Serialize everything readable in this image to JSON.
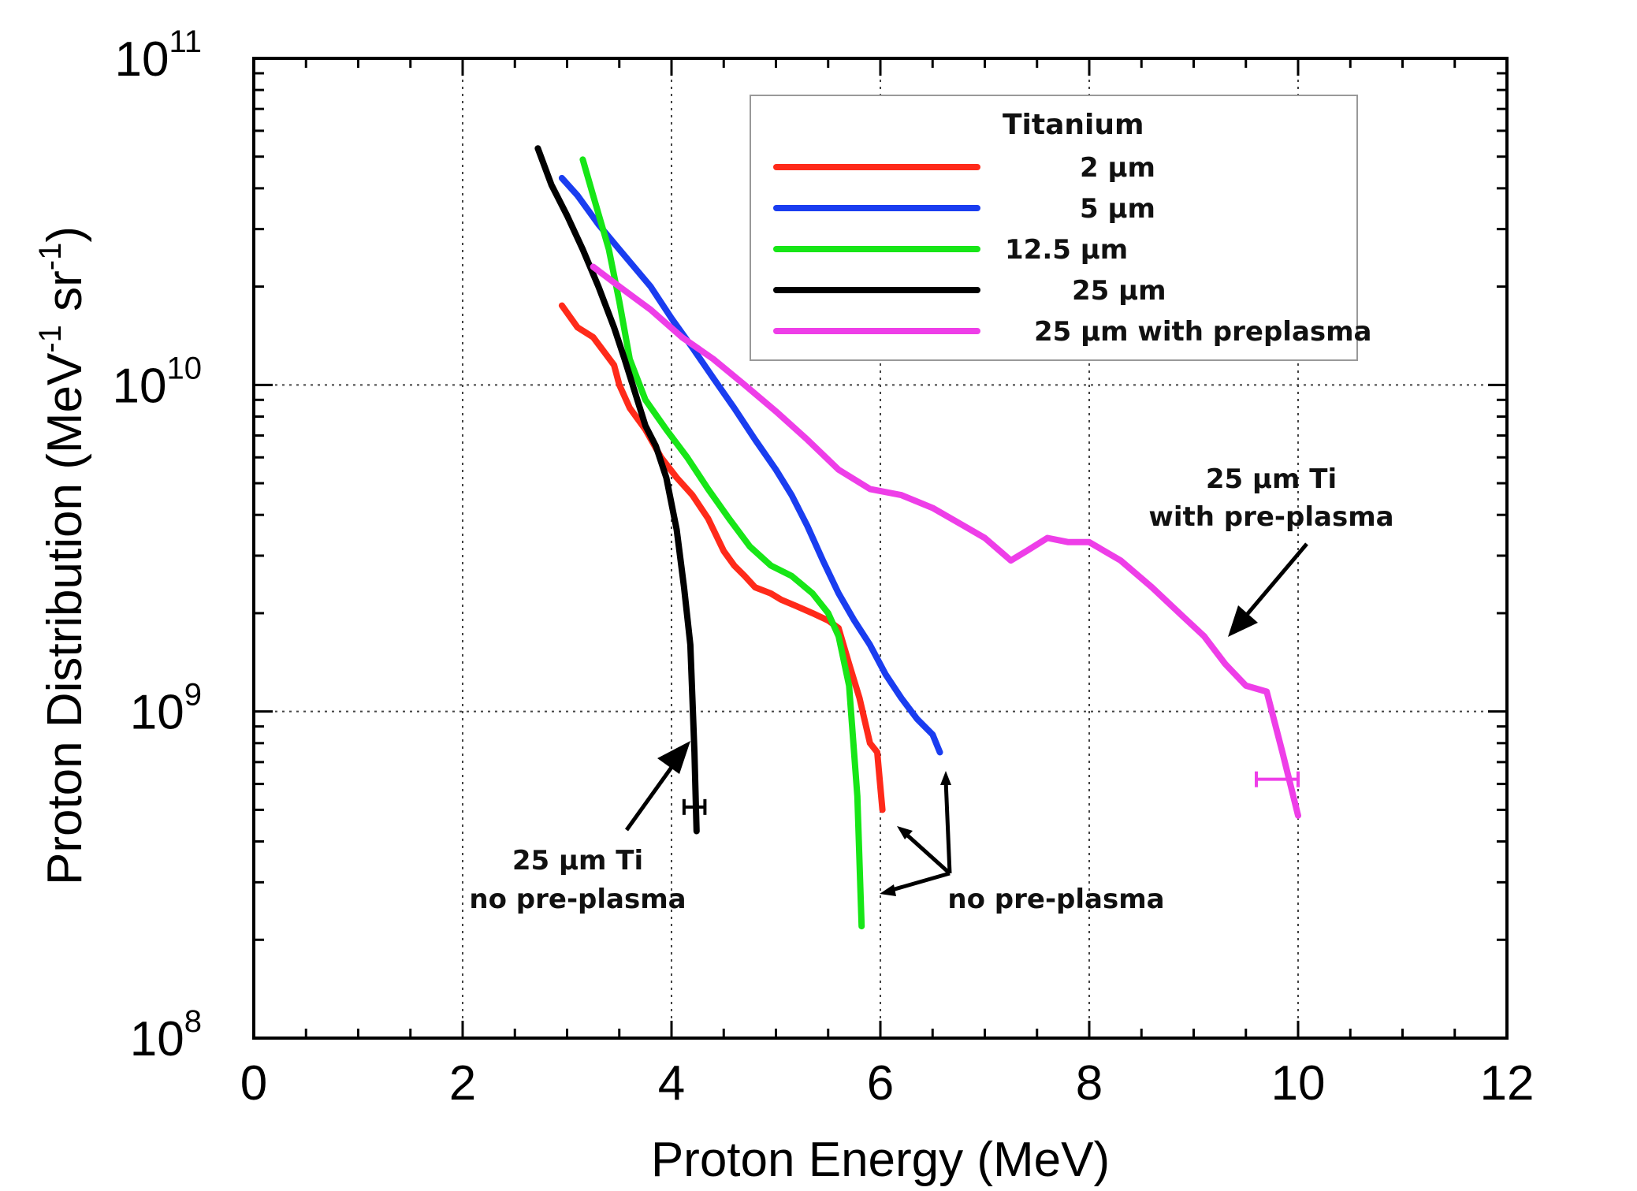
{
  "chart_data": {
    "type": "line",
    "title": "",
    "xlabel": "Proton Energy (MeV)",
    "ylabel": "Proton Distribution (MeV⁻¹ sr⁻¹)",
    "ylabel_parts": {
      "main": "Proton Distribution (MeV",
      "exp1": "-1",
      "mid": " sr",
      "exp2": "-1",
      "end": ")"
    },
    "xlim": [
      0,
      12
    ],
    "ylim": [
      100000000.0,
      100000000000.0
    ],
    "yscale": "log",
    "grid": true,
    "x_ticks": [
      0,
      2,
      4,
      6,
      8,
      10,
      12
    ],
    "x_tick_labels": [
      "0",
      "2",
      "4",
      "6",
      "8",
      "10",
      "12"
    ],
    "y_ticks": [
      {
        "value": 100000000.0,
        "base": "10",
        "exp": "8"
      },
      {
        "value": 1000000000.0,
        "base": "10",
        "exp": "9"
      },
      {
        "value": 10000000000.0,
        "base": "10",
        "exp": "10"
      },
      {
        "value": 100000000000.0,
        "base": "10",
        "exp": "11"
      }
    ],
    "legend": {
      "title": "Titanium",
      "position": "top-right"
    },
    "series": [
      {
        "name": "2 µm",
        "color": "#ff2a1a",
        "x": [
          2.95,
          3.1,
          3.25,
          3.45,
          3.5,
          3.6,
          3.75,
          3.9,
          4.05,
          4.2,
          4.35,
          4.5,
          4.6,
          4.7,
          4.8,
          4.95,
          5.05,
          5.2,
          5.35,
          5.5,
          5.6,
          5.7,
          5.8,
          5.9,
          5.97,
          6.02
        ],
        "y": [
          17500000000.0,
          15000000000.0,
          14000000000.0,
          11500000000.0,
          10000000000.0,
          8500000000.0,
          7300000000.0,
          6000000000.0,
          5200000000.0,
          4600000000.0,
          3900000000.0,
          3100000000.0,
          2800000000.0,
          2600000000.0,
          2400000000.0,
          2300000000.0,
          2200000000.0,
          2100000000.0,
          2000000000.0,
          1900000000.0,
          1800000000.0,
          1400000000.0,
          1100000000.0,
          800000000.0,
          750000000.0,
          500000000.0
        ]
      },
      {
        "name": "5 µm",
        "color": "#1a3df0",
        "x": [
          2.95,
          3.1,
          3.3,
          3.5,
          3.8,
          4.0,
          4.2,
          4.4,
          4.6,
          4.8,
          5.0,
          5.15,
          5.3,
          5.45,
          5.6,
          5.75,
          5.9,
          6.05,
          6.2,
          6.35,
          6.5,
          6.57
        ],
        "y": [
          43000000000.0,
          38000000000.0,
          31000000000.0,
          26000000000.0,
          20000000000.0,
          16000000000.0,
          13000000000.0,
          10500000000.0,
          8500000000.0,
          6800000000.0,
          5500000000.0,
          4600000000.0,
          3700000000.0,
          2900000000.0,
          2300000000.0,
          1900000000.0,
          1600000000.0,
          1300000000.0,
          1100000000.0,
          950000000.0,
          850000000.0,
          750000000.0
        ]
      },
      {
        "name": "12.5 µm",
        "color": "#17e617",
        "x": [
          3.15,
          3.25,
          3.4,
          3.5,
          3.6,
          3.75,
          3.95,
          4.15,
          4.35,
          4.55,
          4.75,
          4.95,
          5.15,
          5.35,
          5.5,
          5.6,
          5.7,
          5.78,
          5.82
        ],
        "y": [
          49000000000.0,
          38000000000.0,
          26000000000.0,
          18000000000.0,
          12000000000.0,
          9000000000.0,
          7300000000.0,
          6000000000.0,
          4800000000.0,
          3900000000.0,
          3200000000.0,
          2800000000.0,
          2600000000.0,
          2300000000.0,
          2000000000.0,
          1700000000.0,
          1200000000.0,
          550000000.0,
          220000000.0
        ]
      },
      {
        "name": "25 µm",
        "color": "#000000",
        "x": [
          2.72,
          2.85,
          3.0,
          3.15,
          3.3,
          3.45,
          3.55,
          3.65,
          3.75,
          3.85,
          3.95,
          4.05,
          4.12,
          4.18,
          4.2,
          4.22,
          4.24
        ],
        "y": [
          53000000000.0,
          41000000000.0,
          33000000000.0,
          26000000000.0,
          20000000000.0,
          15000000000.0,
          12000000000.0,
          9500000000.0,
          7500000000.0,
          6500000000.0,
          5200000000.0,
          3600000000.0,
          2400000000.0,
          1600000000.0,
          1100000000.0,
          750000000.0,
          430000000.0
        ]
      },
      {
        "name": "25 µm with preplasma",
        "color": "#ee3ee8",
        "x": [
          3.25,
          3.5,
          3.8,
          4.1,
          4.4,
          4.7,
          5.0,
          5.3,
          5.6,
          5.9,
          6.2,
          6.5,
          6.8,
          7.0,
          7.25,
          7.4,
          7.6,
          7.8,
          8.0,
          8.3,
          8.6,
          8.9,
          9.1,
          9.3,
          9.5,
          9.7,
          9.85,
          10.0
        ],
        "y": [
          23000000000.0,
          20000000000.0,
          17000000000.0,
          14000000000.0,
          12000000000.0,
          10000000000.0,
          8300000000.0,
          6800000000.0,
          5500000000.0,
          4800000000.0,
          4600000000.0,
          4200000000.0,
          3700000000.0,
          3400000000.0,
          2900000000.0,
          3100000000.0,
          3400000000.0,
          3300000000.0,
          3300000000.0,
          2900000000.0,
          2400000000.0,
          1950000000.0,
          1700000000.0,
          1400000000.0,
          1200000000.0,
          1150000000.0,
          750000000.0,
          480000000.0
        ]
      }
    ],
    "error_bars": [
      {
        "series": "25 µm",
        "color": "#000000",
        "x": 4.22,
        "xerr": 0.1,
        "y": 510000000.0
      },
      {
        "series": "25 µm with preplasma",
        "color": "#ee3ee8",
        "x": 9.8,
        "xerr": 0.2,
        "y": 620000000.0
      }
    ],
    "annotations": [
      {
        "lines": [
          "25 µm Ti",
          "no pre-plasma"
        ]
      },
      {
        "lines": [
          "25 µm Ti",
          "with pre-plasma"
        ]
      },
      {
        "lines": [
          "no pre-plasma"
        ]
      }
    ]
  }
}
